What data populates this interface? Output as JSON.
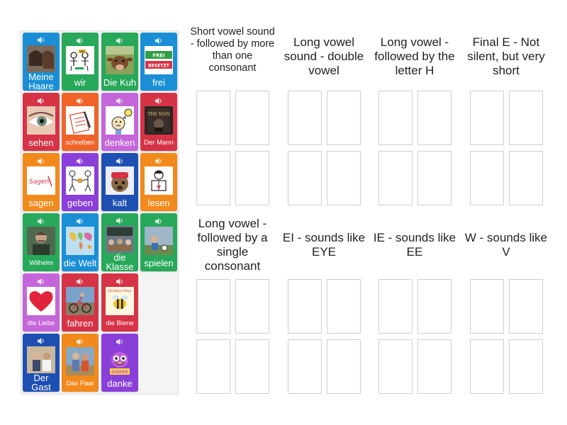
{
  "cards": [
    {
      "label": "Meine Haare",
      "color": "#1a8fd6",
      "image": "hair-photo"
    },
    {
      "label": "wir",
      "color": "#27a85a",
      "image": "people-drawing"
    },
    {
      "label": "Die Kuh",
      "color": "#27a85a",
      "image": "cow-photo"
    },
    {
      "label": "frei",
      "color": "#1a8fd6",
      "image": "frei-besetzt-sign",
      "sign_top": "FREI",
      "sign_bottom": "BESETZT"
    },
    {
      "label": "sehen",
      "color": "#d63346",
      "image": "eye-photo"
    },
    {
      "label": "schreiben",
      "color": "#f0642a",
      "image": "writing-drawing"
    },
    {
      "label": "denken",
      "color": "#c466d9",
      "image": "thinking-drawing"
    },
    {
      "label": "Der Mann",
      "color": "#d63346",
      "image": "book-cover",
      "book_text": "THE MAN"
    },
    {
      "label": "sagen",
      "color": "#f28a1b",
      "image": "sagen-text",
      "pic_text": "Sagen"
    },
    {
      "label": "geben",
      "color": "#8b3fd9",
      "image": "giving-drawing"
    },
    {
      "label": "kalt",
      "color": "#1e4fb3",
      "image": "cold-dog-photo"
    },
    {
      "label": "lesen",
      "color": "#f28a1b",
      "image": "reading-drawing"
    },
    {
      "label": "Wilhelm",
      "color": "#27a85a",
      "image": "portrait-photo"
    },
    {
      "label": "die Welt",
      "color": "#1a8fd6",
      "image": "world-map"
    },
    {
      "label": "die Klasse",
      "color": "#27a85a",
      "image": "classroom-photo"
    },
    {
      "label": "spielen",
      "color": "#27a85a",
      "image": "playing-photo"
    },
    {
      "label": "die Liebe",
      "color": "#c466d9",
      "image": "heart"
    },
    {
      "label": "fahren",
      "color": "#d63346",
      "image": "cycling-photo"
    },
    {
      "label": "die Biene",
      "color": "#d63346",
      "image": "bee-book",
      "book_text": "Die Biene Maya"
    },
    {
      "label": "Der Gast",
      "color": "#1e4fb3",
      "image": "guest-photo"
    },
    {
      "label": "Das Paar",
      "color": "#f28a1b",
      "image": "couple-photo"
    },
    {
      "label": "danke",
      "color": "#8b3fd9",
      "image": "danke-cartoon",
      "pic_text": "DANKE"
    }
  ],
  "groups": [
    {
      "title": "Short vowel sound - followed by more than one consonant"
    },
    {
      "title": "Long vowel sound - double vowel"
    },
    {
      "title": "Long vowel - followed by the letter H"
    },
    {
      "title": "Final E - Not silent, but very short"
    },
    {
      "title": "Long vowel - followed by a single consonant"
    },
    {
      "title": "EI - sounds like EYE"
    },
    {
      "title": "IE - sounds like EE"
    },
    {
      "title": "W - sounds like V"
    }
  ],
  "icons": {
    "speaker": "speaker-icon"
  },
  "colors": {
    "slot_border": "#cfcfcf",
    "tray_bg": "#f4f4f4"
  }
}
